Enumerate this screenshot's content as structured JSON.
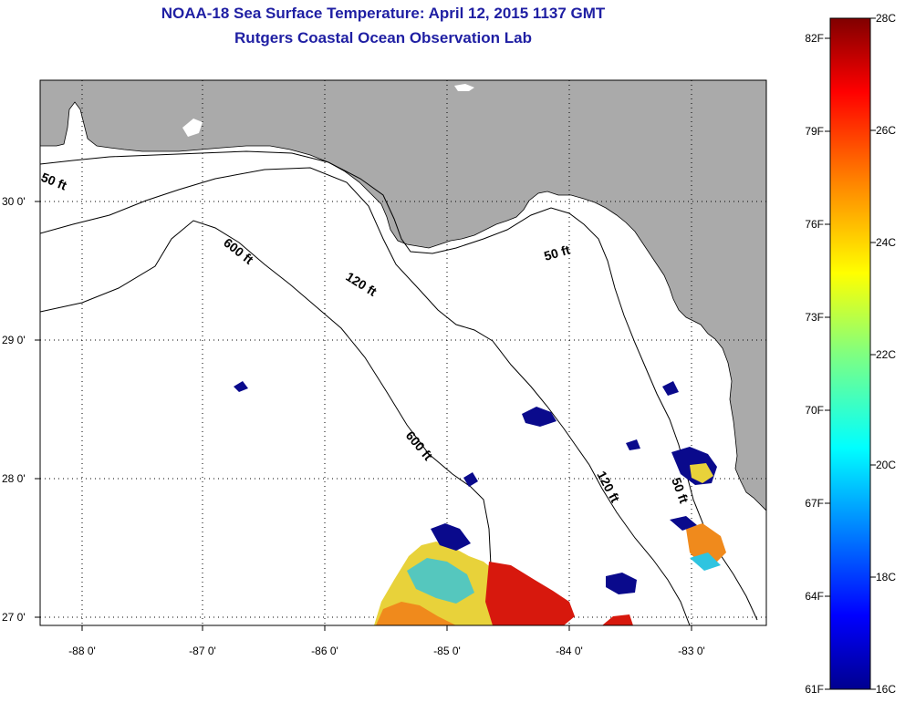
{
  "title_line1": "NOAA-18 Sea Surface Temperature:  April 12, 2015 1137 GMT",
  "title_line2": "Rutgers Coastal Ocean Observation Lab",
  "lon_labels": [
    "-88 0'",
    "-87 0'",
    "-86 0'",
    "-85 0'",
    "-84 0'",
    "-83 0'"
  ],
  "lat_labels": [
    "30 0'",
    "29 0'",
    "28 0'",
    "27 0'"
  ],
  "contours": {
    "c50_west": "50 ft",
    "c50_east": "50 ft",
    "c50_south": "50 ft",
    "c120_north": "120 ft",
    "c120_south": "120 ft",
    "c600_north": "600 ft",
    "c600_south": "600 ft"
  },
  "colorbar": {
    "f_labels": [
      "82F",
      "79F",
      "76F",
      "73F",
      "70F",
      "67F",
      "64F",
      "61F"
    ],
    "c_labels": [
      "28C",
      "26C",
      "24C",
      "22C",
      "20C",
      "18C",
      "16C"
    ],
    "colors": [
      "#00008f",
      "#0000ff",
      "#0080ff",
      "#00ffff",
      "#80ff80",
      "#ffff00",
      "#ff8000",
      "#ff0000",
      "#800000"
    ]
  },
  "colors": {
    "land": "#aaaaaa",
    "title": "#1f1fa3",
    "sst_blue": "#0a0a8c",
    "sst_cyan": "#2fc4e0",
    "sst_yellow": "#e8d23a",
    "sst_orange": "#f08a1c",
    "sst_red": "#d7180d"
  }
}
